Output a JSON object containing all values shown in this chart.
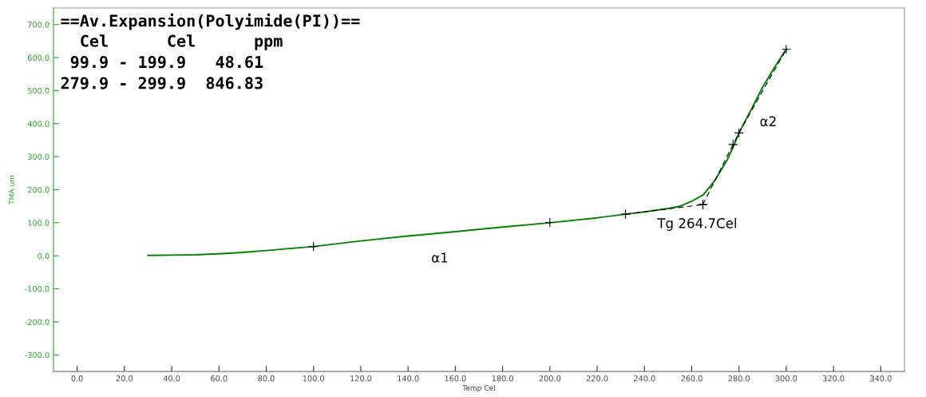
{
  "chart_data": {
    "type": "line",
    "xlabel": "Temp Cel",
    "ylabel": "TMA um",
    "xlim": [
      -10,
      350
    ],
    "ylim": [
      -350,
      750
    ],
    "xticks": [
      {
        "value": 0,
        "label": "0.0"
      },
      {
        "value": 20,
        "label": "20.0"
      },
      {
        "value": 40,
        "label": "40.0"
      },
      {
        "value": 60,
        "label": "60.0"
      },
      {
        "value": 80,
        "label": "80.0"
      },
      {
        "value": 100,
        "label": "100.0"
      },
      {
        "value": 120,
        "label": "120.0"
      },
      {
        "value": 140,
        "label": "140.0"
      },
      {
        "value": 160,
        "label": "160.0"
      },
      {
        "value": 180,
        "label": "180.0"
      },
      {
        "value": 200,
        "label": "200.0"
      },
      {
        "value": 220,
        "label": "220.0"
      },
      {
        "value": 240,
        "label": "240.0"
      },
      {
        "value": 260,
        "label": "260.0"
      },
      {
        "value": 280,
        "label": "280.0"
      },
      {
        "value": 300,
        "label": "300.0"
      },
      {
        "value": 320,
        "label": "320.0"
      },
      {
        "value": 340,
        "label": "340.0"
      }
    ],
    "yticks": [
      {
        "value": -300,
        "label": "-300.0"
      },
      {
        "value": -200,
        "label": "-200.0"
      },
      {
        "value": -100,
        "label": "-100.0"
      },
      {
        "value": 0,
        "label": "0.0"
      },
      {
        "value": 100,
        "label": "100.0"
      },
      {
        "value": 200,
        "label": "200.0"
      },
      {
        "value": 300,
        "label": "300.0"
      },
      {
        "value": 400,
        "label": "400.0"
      },
      {
        "value": 500,
        "label": "500.0"
      },
      {
        "value": 600,
        "label": "600.0"
      },
      {
        "value": 700,
        "label": "700.0"
      }
    ],
    "grid": false,
    "legend": false,
    "series": [
      {
        "color": "#008000",
        "line_style": "solid",
        "marker": "none",
        "x": [
          30,
          40,
          50,
          60,
          70,
          80,
          90,
          100,
          120,
          140,
          160,
          180,
          200,
          220,
          232,
          240,
          250,
          255,
          260,
          265,
          270,
          275,
          278,
          280,
          285,
          290,
          295,
          300
        ],
        "values": [
          1,
          2,
          3,
          6,
          10,
          16,
          22,
          28,
          45,
          60,
          73,
          87,
          100,
          115,
          126,
          133,
          143,
          150,
          165,
          185,
          230,
          290,
          337,
          372,
          440,
          510,
          570,
          625
        ]
      },
      {
        "color": "#000000",
        "line_style": "dashed",
        "marker": "cross",
        "x": [
          232,
          264.7
        ],
        "values": [
          126,
          155
        ]
      },
      {
        "color": "#000000",
        "line_style": "dashed",
        "marker": "cross",
        "x": [
          264.7,
          277.5,
          280,
          300
        ],
        "values": [
          155,
          337,
          372,
          625
        ]
      },
      {
        "type": "scatter",
        "color": "#000000",
        "marker": "cross",
        "x": [
          100,
          200
        ],
        "values": [
          28,
          101
        ]
      }
    ],
    "annotations": [
      "==Av.Expansion(Polyimide(PI))==",
      "  Cel      Cel      ppm",
      " 99.9 - 199.9   48.61",
      "279.9 - 299.9  846.83",
      "α1",
      {
        "text": "Tg 264.7Cel",
        "x": 264.7,
        "y": 155
      },
      "α2"
    ]
  }
}
